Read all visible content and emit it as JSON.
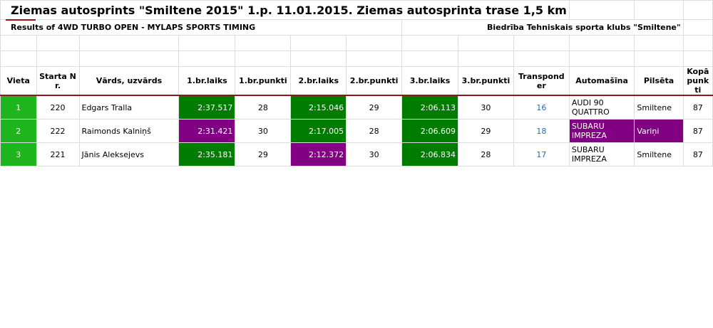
{
  "title": "Ziemas autosprints \"Smiltene 2015\" 1.p. 11.01.2015. Ziemas autosprinta trase 1,5 km",
  "subtitle": "Results of 4WD TURBO OPEN - MYLAPS SPORTS TIMING",
  "organizer": "Biedrība Tehniskais sporta klubs \"Smiltene\"",
  "table": {
    "header": [
      "Vieta",
      "Starta Nr.",
      "Vārds, uzvārds",
      "1.br.laiks",
      "1.br.punkti",
      "2.br.laiks",
      "2.br.punkti",
      "3.br.laiks",
      "3.br.punkti",
      "Transponder",
      "Automašīna",
      "Pilsēta",
      "Kopā punkti"
    ],
    "rows": [
      [
        1,
        220,
        "Edgars Tralla",
        "2:37.517",
        28,
        "2:15.046",
        29,
        "2:06.113",
        30,
        16,
        "AUDI 90 QUATTRO",
        "Smiltene",
        87
      ],
      [
        2,
        222,
        "Raimonds Kalniņš",
        "2:31.421",
        30,
        "2:17.005",
        28,
        "2:06.609",
        29,
        18,
        "SUBARU IMPREZA",
        "Variņi",
        87
      ],
      [
        3,
        221,
        "Jānis Aleksejevs",
        "2:35.181",
        29,
        "2:12.372",
        30,
        "2:06.834",
        28,
        17,
        "SUBARU IMPREZA",
        "Smiltene",
        87
      ]
    ]
  }
}
